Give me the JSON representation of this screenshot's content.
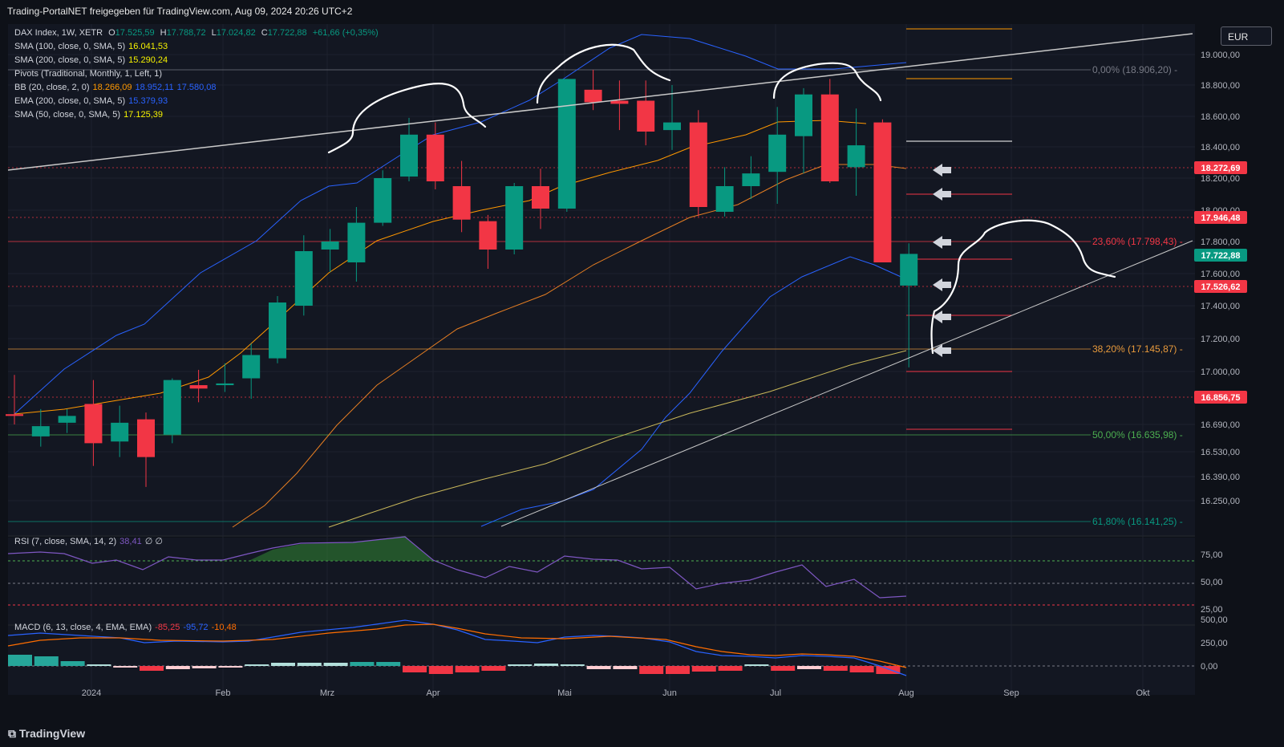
{
  "header": {
    "title": "Trading-PortalNET freigegeben für TradingView.com, Aug 09, 2024 20:26 UTC+2"
  },
  "currency_button": "EUR",
  "brand": "TradingView",
  "legend": {
    "main": {
      "symbol": "DAX Index, 1W, XETR",
      "o_label": "O",
      "o": "17.525,59",
      "h_label": "H",
      "h": "17.788,72",
      "l_label": "L",
      "l": "17.024,82",
      "c_label": "C",
      "c": "17.722,88",
      "change": "+61,66 (+0,35%)"
    },
    "sma100": {
      "label": "SMA (100, close, 0, SMA, 5)",
      "value": "16.041,53"
    },
    "sma200": {
      "label": "SMA (200, close, 0, SMA, 5)",
      "value": "15.290,24"
    },
    "pivots": {
      "label": "Pivots (Traditional, Monthly, 1, Left, 1)"
    },
    "bb": {
      "label": "BB (20, close, 2, 0)",
      "v1": "18.266,09",
      "v2": "18.952,11",
      "v3": "17.580,08"
    },
    "ema200": {
      "label": "EMA (200, close, 0, SMA, 5)",
      "value": "15.379,93"
    },
    "sma50": {
      "label": "SMA (50, close, 0, SMA, 5)",
      "value": "17.125,39"
    }
  },
  "rsi_legend": {
    "label": "RSI (7, close, SMA, 14, 2)",
    "value": "38,41",
    "extra": "∅ ∅"
  },
  "macd_legend": {
    "label": "MACD (6, 13, close, 4, EMA, EMA)",
    "v1": "-85,25",
    "v2": "-95,72",
    "v3": "-10,48"
  },
  "price_axis": [
    "19.000,00",
    "18.800,00",
    "18.600,00",
    "18.400,00",
    "18.200,00",
    "18.000,00",
    "17.800,00",
    "17.600,00",
    "17.400,00",
    "17.200,00",
    "17.000,00",
    "16.690,00",
    "16.530,00",
    "16.390,00",
    "16.250,00"
  ],
  "price_badges": [
    {
      "text": "18.272,69",
      "color": "#f23645"
    },
    {
      "text": "17.946,48",
      "color": "#f23645"
    },
    {
      "text": "17.722,88",
      "color": "#089981"
    },
    {
      "text": "17.526,62",
      "color": "#f23645"
    },
    {
      "text": "16.856,75",
      "color": "#f23645"
    }
  ],
  "fib_levels": [
    {
      "text": "0,00% (18.906,20)",
      "color": "#787b86"
    },
    {
      "text": "23,60% (17.798,43)",
      "color": "#f23645"
    },
    {
      "text": "38,20% (17.145,87)",
      "color": "#e89a3c"
    },
    {
      "text": "50,00% (16.635,98)",
      "color": "#4caf50"
    },
    {
      "text": "61,80% (16.141,25)",
      "color": "#089981"
    }
  ],
  "rsi_axis": [
    "75,00",
    "50,00",
    "25,00"
  ],
  "macd_axis": [
    "500,00",
    "250,00",
    "0,00"
  ],
  "date_axis": [
    "2024",
    "Feb",
    "Mrz",
    "Apr",
    "Mai",
    "Jun",
    "Jul",
    "Aug",
    "Sep",
    "Okt"
  ],
  "colors": {
    "up": "#089981",
    "down": "#f23645",
    "background": "#0e1118",
    "bb": "#2962ff",
    "sma50": "#e89a3c",
    "sma100": "#c8b75a"
  },
  "chart_data": {
    "type": "candlestick",
    "title": "DAX Index, 1W, XETR",
    "ylim": [
      16100,
      19100
    ],
    "candles": [
      {
        "o": 16750,
        "h": 16980,
        "l": 16690,
        "c": 16740
      },
      {
        "o": 16620,
        "h": 16780,
        "l": 16560,
        "c": 16680
      },
      {
        "o": 16700,
        "h": 16780,
        "l": 16640,
        "c": 16740
      },
      {
        "o": 16810,
        "h": 16950,
        "l": 16450,
        "c": 16580
      },
      {
        "o": 16590,
        "h": 16800,
        "l": 16500,
        "c": 16700
      },
      {
        "o": 16720,
        "h": 16760,
        "l": 16330,
        "c": 16500
      },
      {
        "o": 16630,
        "h": 16960,
        "l": 16580,
        "c": 16950
      },
      {
        "o": 16920,
        "h": 17010,
        "l": 16820,
        "c": 16900
      },
      {
        "o": 16920,
        "h": 17050,
        "l": 16880,
        "c": 16930
      },
      {
        "o": 16960,
        "h": 17170,
        "l": 16840,
        "c": 17100
      },
      {
        "o": 17080,
        "h": 17460,
        "l": 17050,
        "c": 17420
      },
      {
        "o": 17400,
        "h": 17840,
        "l": 17340,
        "c": 17740
      },
      {
        "o": 17750,
        "h": 17880,
        "l": 17610,
        "c": 17800
      },
      {
        "o": 17670,
        "h": 18020,
        "l": 17550,
        "c": 17920
      },
      {
        "o": 17920,
        "h": 18250,
        "l": 17900,
        "c": 18200
      },
      {
        "o": 18210,
        "h": 18590,
        "l": 18180,
        "c": 18480
      },
      {
        "o": 18480,
        "h": 18560,
        "l": 18130,
        "c": 18180
      },
      {
        "o": 18150,
        "h": 18310,
        "l": 17860,
        "c": 17940
      },
      {
        "o": 17930,
        "h": 17970,
        "l": 17630,
        "c": 17750
      },
      {
        "o": 17750,
        "h": 18170,
        "l": 17720,
        "c": 18150
      },
      {
        "o": 18150,
        "h": 18260,
        "l": 17880,
        "c": 18010
      },
      {
        "o": 18010,
        "h": 18840,
        "l": 17990,
        "c": 18840
      },
      {
        "o": 18770,
        "h": 18900,
        "l": 18640,
        "c": 18690
      },
      {
        "o": 18700,
        "h": 18830,
        "l": 18510,
        "c": 18680
      },
      {
        "o": 18700,
        "h": 18830,
        "l": 18410,
        "c": 18500
      },
      {
        "o": 18510,
        "h": 18800,
        "l": 18380,
        "c": 18560
      },
      {
        "o": 18560,
        "h": 18640,
        "l": 17960,
        "c": 18020
      },
      {
        "o": 17990,
        "h": 18270,
        "l": 17960,
        "c": 18150
      },
      {
        "o": 18150,
        "h": 18340,
        "l": 18070,
        "c": 18230
      },
      {
        "o": 18240,
        "h": 18660,
        "l": 18040,
        "c": 18480
      },
      {
        "o": 18470,
        "h": 18780,
        "l": 18230,
        "c": 18740
      },
      {
        "o": 18740,
        "h": 18840,
        "l": 18170,
        "c": 18180
      },
      {
        "o": 18270,
        "h": 18650,
        "l": 18090,
        "c": 18410
      },
      {
        "o": 18560,
        "h": 18580,
        "l": 17670,
        "c": 17670
      },
      {
        "o": 17525.59,
        "h": 17788.72,
        "l": 17024.82,
        "c": 17722.88
      }
    ]
  }
}
